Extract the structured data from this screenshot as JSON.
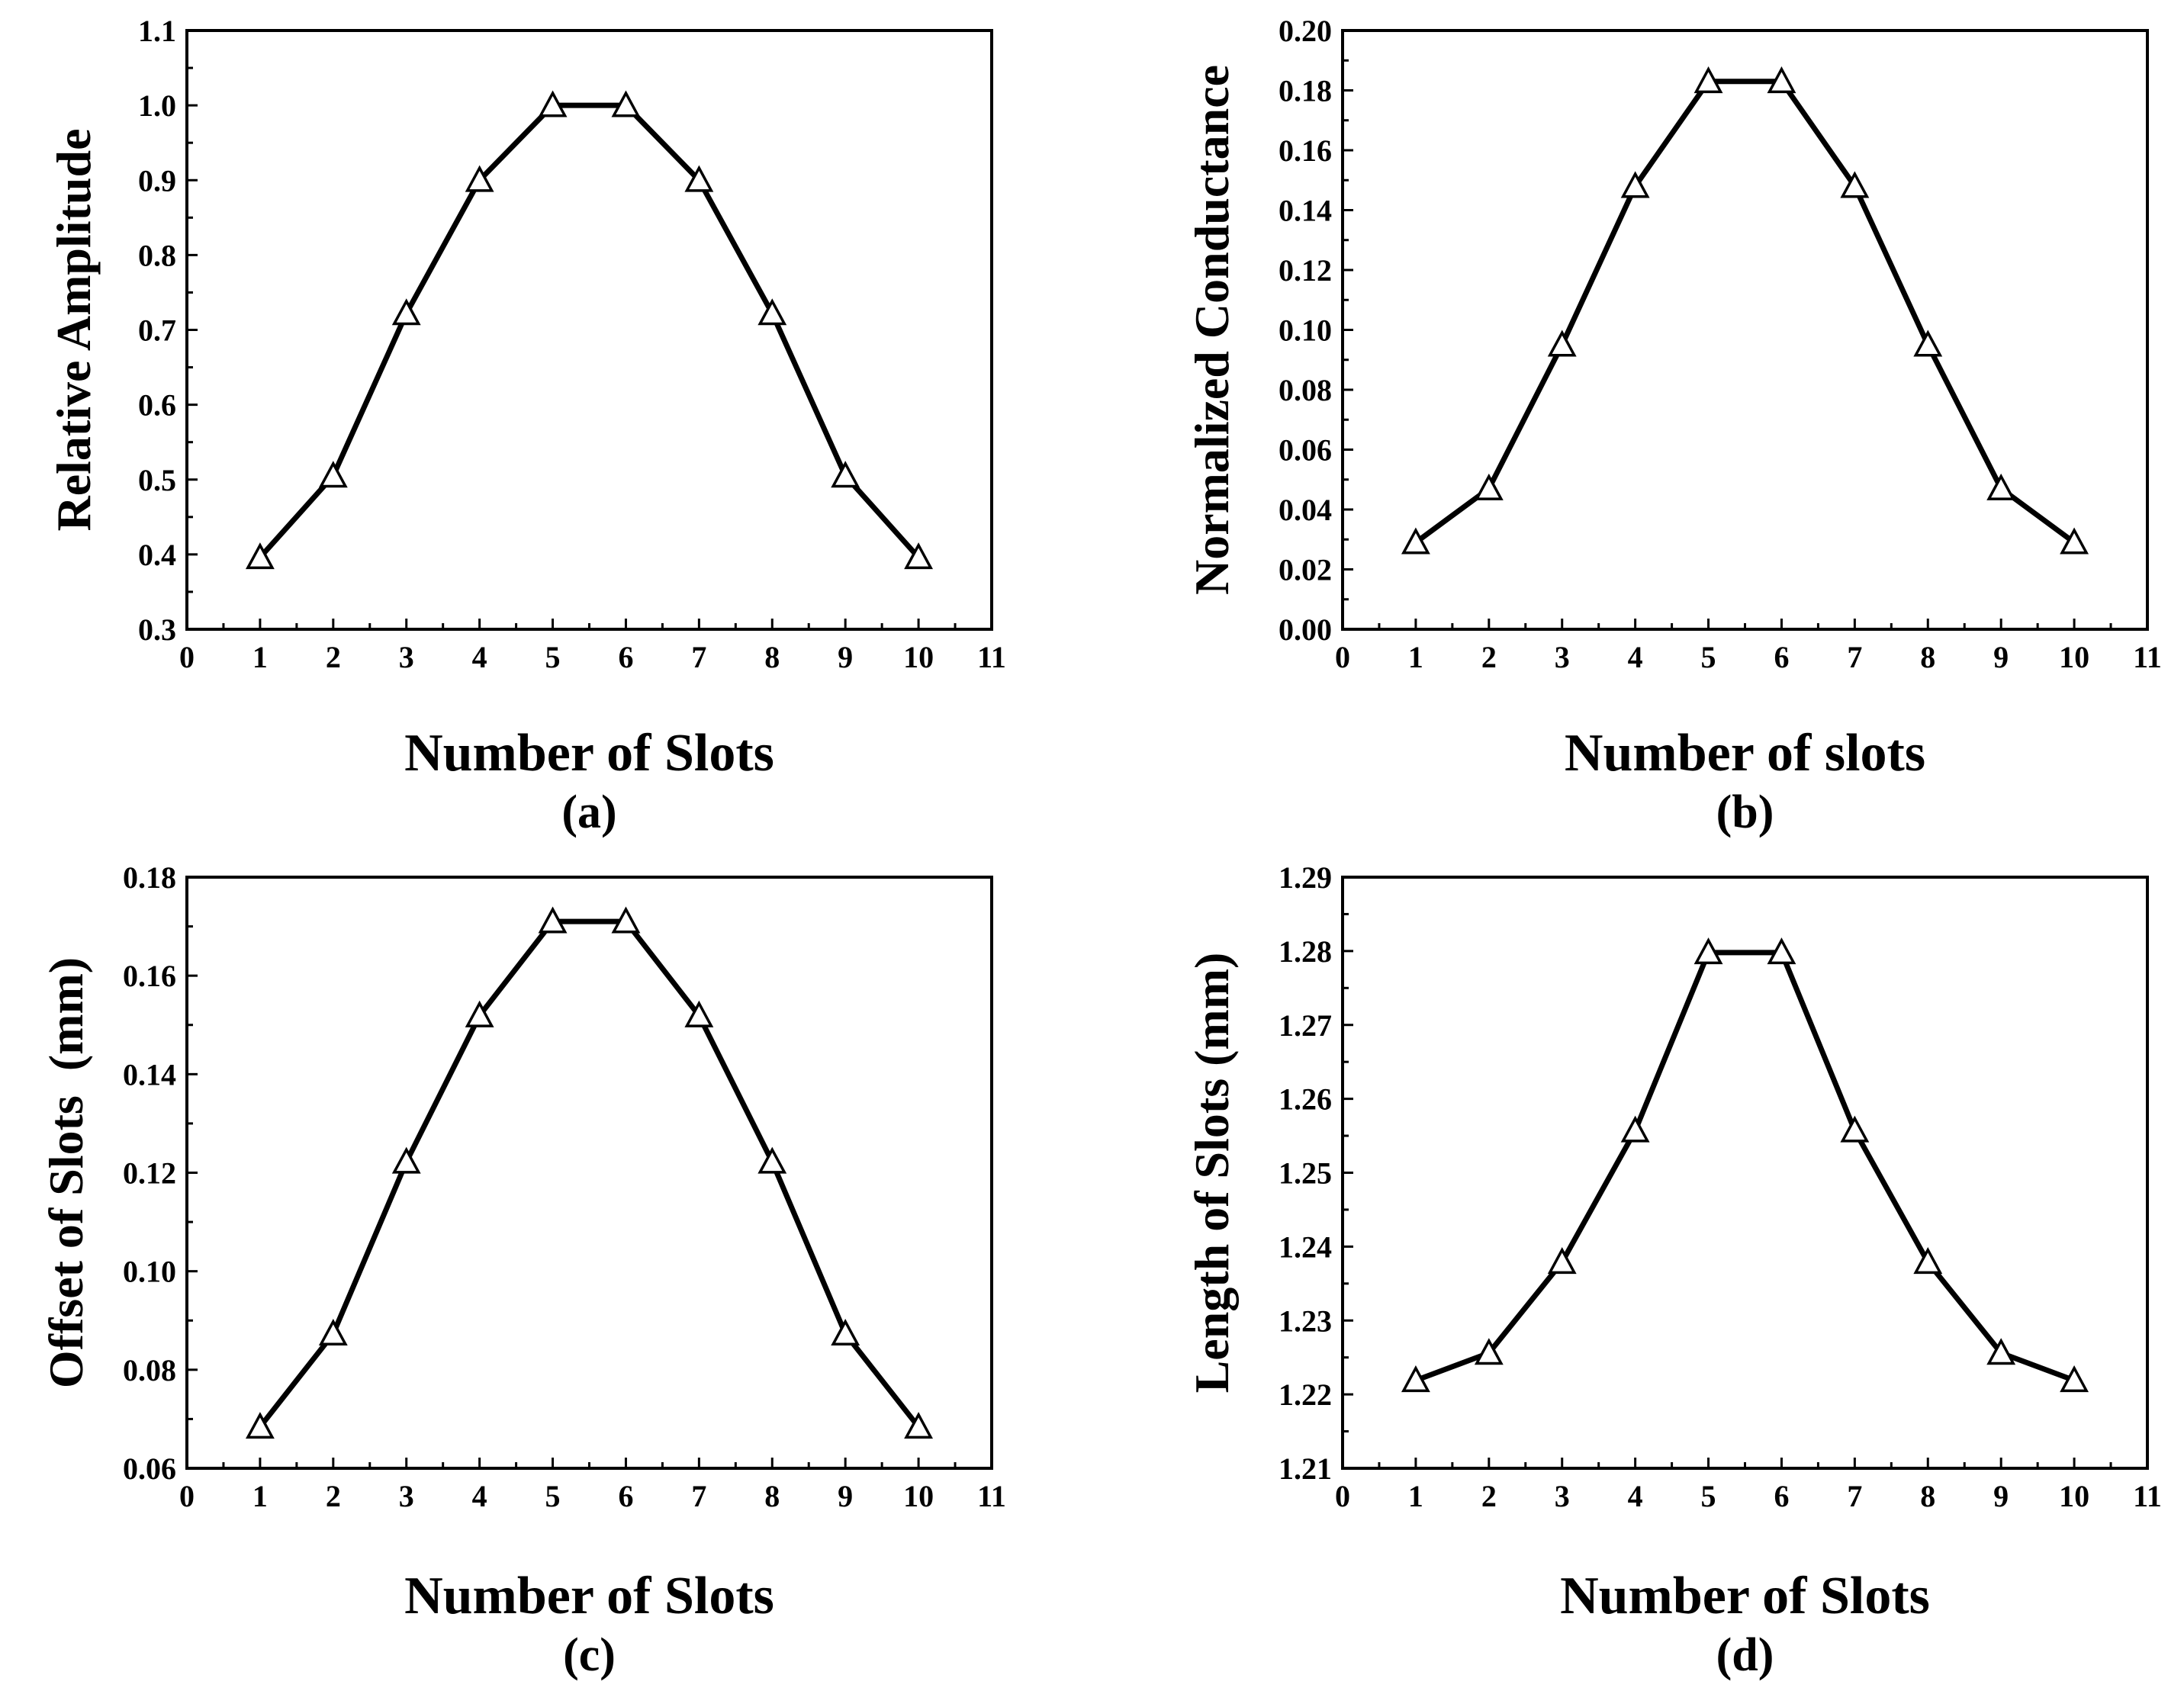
{
  "chart_data": [
    {
      "type": "line",
      "panel_label": "(a)",
      "xlabel": "Number of Slots",
      "ylabel": "Relative Amplitude",
      "xlim": [
        0,
        11
      ],
      "ylim": [
        0.3,
        1.1
      ],
      "xticks": [
        "0",
        "1",
        "2",
        "3",
        "4",
        "5",
        "6",
        "7",
        "8",
        "9",
        "10",
        "11"
      ],
      "yticks": [
        "0.3",
        "0.4",
        "0.5",
        "0.6",
        "0.7",
        "0.8",
        "0.9",
        "1.0",
        "1.1"
      ],
      "x": [
        1,
        2,
        3,
        4,
        5,
        6,
        7,
        8,
        9,
        10
      ],
      "series": [
        {
          "name": "Relative Amplitude",
          "marker": "triangle",
          "values": [
            0.396,
            0.505,
            0.722,
            0.9,
            1.0,
            1.0,
            0.9,
            0.722,
            0.505,
            0.396
          ]
        }
      ],
      "grid": false
    },
    {
      "type": "line",
      "panel_label": "(b)",
      "xlabel": "Number of slots",
      "ylabel": "Normalized Conductance",
      "xlim": [
        0,
        11
      ],
      "ylim": [
        0.0,
        0.2
      ],
      "xticks": [
        "0",
        "1",
        "2",
        "3",
        "4",
        "5",
        "6",
        "7",
        "8",
        "9",
        "10",
        "11"
      ],
      "yticks": [
        "0.00",
        "0.02",
        "0.04",
        "0.06",
        "0.08",
        "0.10",
        "0.12",
        "0.14",
        "0.16",
        "0.18",
        "0.20"
      ],
      "x": [
        1,
        2,
        3,
        4,
        5,
        6,
        7,
        8,
        9,
        10
      ],
      "series": [
        {
          "name": "Normalized Conductance",
          "marker": "triangle",
          "values": [
            0.029,
            0.047,
            0.095,
            0.148,
            0.183,
            0.183,
            0.148,
            0.095,
            0.047,
            0.029
          ]
        }
      ],
      "grid": false
    },
    {
      "type": "line",
      "panel_label": "(c)",
      "xlabel": "Number of Slots",
      "ylabel": "Offset of Slots  (mm)",
      "xlim": [
        0,
        11
      ],
      "ylim": [
        0.06,
        0.18
      ],
      "xticks": [
        "0",
        "1",
        "2",
        "3",
        "4",
        "5",
        "6",
        "7",
        "8",
        "9",
        "10",
        "11"
      ],
      "yticks": [
        "0.06",
        "0.08",
        "0.10",
        "0.12",
        "0.14",
        "0.16",
        "0.18"
      ],
      "x": [
        1,
        2,
        3,
        4,
        5,
        6,
        7,
        8,
        9,
        10
      ],
      "series": [
        {
          "name": "Offset of Slots",
          "marker": "triangle",
          "values": [
            0.0684,
            0.0873,
            0.1222,
            0.1519,
            0.171,
            0.171,
            0.1519,
            0.1222,
            0.0873,
            0.0684
          ]
        }
      ],
      "grid": false
    },
    {
      "type": "line",
      "panel_label": "(d)",
      "xlabel": "Number of Slots",
      "ylabel": "Length of Slots (mm)",
      "xlim": [
        0,
        11
      ],
      "ylim": [
        1.21,
        1.29
      ],
      "xticks": [
        "0",
        "1",
        "2",
        "3",
        "4",
        "5",
        "6",
        "7",
        "8",
        "9",
        "10",
        "11"
      ],
      "yticks": [
        "1.21",
        "1.22",
        "1.23",
        "1.24",
        "1.25",
        "1.26",
        "1.27",
        "1.28",
        "1.29"
      ],
      "x": [
        1,
        2,
        3,
        4,
        5,
        6,
        7,
        8,
        9,
        10
      ],
      "series": [
        {
          "name": "Length of Slots",
          "marker": "triangle",
          "values": [
            1.2219,
            1.2256,
            1.2379,
            1.2557,
            1.2798,
            1.2798,
            1.2557,
            1.2379,
            1.2256,
            1.2219
          ]
        }
      ],
      "grid": false
    }
  ]
}
